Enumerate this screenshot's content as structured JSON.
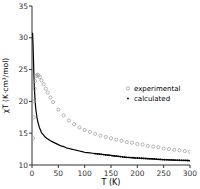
{
  "chart_data": {
    "type": "line",
    "xlabel": "T (K)",
    "ylabel": "χT (K·cm³/mol)",
    "xlim": [
      0,
      300
    ],
    "ylim": [
      10,
      35
    ],
    "xticks": [
      0,
      50,
      100,
      150,
      200,
      250,
      300
    ],
    "yticks": [
      10,
      15,
      20,
      25,
      30,
      35
    ],
    "grid": false,
    "legend": "center right",
    "series": [
      {
        "type": "line",
        "color": "black",
        "x": [
          1.0,
          1.5,
          2.0,
          2.5,
          3.0,
          3.5,
          4.0,
          4.5,
          5.0,
          5.5,
          6.0,
          6.5,
          7.0,
          7.5,
          8.0,
          9.0,
          10.0,
          11.0,
          12.0,
          13.0,
          14.0,
          15.0,
          17.0,
          18.0,
          20.0,
          22.0,
          25.0,
          28.0,
          30.0,
          35.0,
          40.0,
          45.0,
          50.0,
          55.0,
          60.0,
          65.0,
          70.0,
          75.0,
          80.0,
          85.0,
          90.0,
          95.0,
          100.0,
          105.0,
          110.0,
          115.0,
          120.0,
          125.0,
          130.0,
          135.0,
          140.0,
          145.0,
          150.0,
          155.0,
          160.0,
          165.0,
          170.0,
          175.0,
          180.0,
          185.0,
          190.0,
          195.0,
          200.0,
          210.0,
          220.0,
          230.0,
          240.0,
          250.0,
          260.0,
          270.0,
          280.0,
          290.0,
          300.0
        ],
        "values": [
          30.8,
          30.0,
          29.0,
          27.5,
          26.0,
          24.5,
          23.2,
          22.2,
          21.3,
          20.6,
          20.0,
          19.5,
          19.0,
          18.6,
          18.3,
          17.7,
          17.2,
          16.8,
          16.5,
          16.2,
          15.9,
          15.7,
          15.3,
          15.1,
          14.9,
          14.7,
          14.4,
          14.2,
          14.1,
          13.8,
          13.6,
          13.4,
          13.2,
          13.0,
          12.9,
          12.7,
          12.6,
          12.5,
          12.4,
          12.3,
          12.2,
          12.1,
          12.0,
          11.95,
          11.9,
          11.85,
          11.8,
          11.75,
          11.7,
          11.65,
          11.6,
          11.55,
          11.5,
          11.45,
          11.4,
          11.35,
          11.3,
          11.25,
          11.2,
          11.18,
          11.15,
          11.12,
          11.1,
          11.05,
          11.0,
          10.95,
          10.9,
          10.85,
          10.82,
          10.78,
          10.75,
          10.72,
          10.7
        ]
      },
      {
        "name": "experimental",
        "type": "scatter",
        "color": "#999999",
        "marker": "open-circle",
        "x": [
          2,
          3,
          4,
          5,
          6,
          8,
          10,
          12,
          15,
          18,
          22,
          26,
          30,
          35,
          40,
          50,
          60,
          70,
          80,
          90,
          100,
          110,
          120,
          130,
          140,
          150,
          160,
          170,
          180,
          190,
          200,
          210,
          220,
          230,
          240,
          250,
          260,
          270,
          280,
          290,
          300
        ],
        "values": [
          14.2,
          17.5,
          20.0,
          22.0,
          23.2,
          24.0,
          24.2,
          24.1,
          23.8,
          23.3,
          22.7,
          22.0,
          21.4,
          20.6,
          19.9,
          18.7,
          17.8,
          17.0,
          16.4,
          15.9,
          15.5,
          15.2,
          14.9,
          14.6,
          14.4,
          14.2,
          14.0,
          13.8,
          13.6,
          13.5,
          13.3,
          13.2,
          13.0,
          12.9,
          12.8,
          12.6,
          12.5,
          12.4,
          12.3,
          12.2,
          12.1
        ]
      },
      {
        "name": "calculated",
        "type": "scatter",
        "color": "black",
        "marker": "dot",
        "x": [
          120,
          124,
          128,
          132,
          136,
          140,
          144,
          148,
          152,
          156,
          160,
          164,
          168,
          172,
          176,
          180,
          184,
          188,
          192,
          196,
          200,
          204,
          208,
          212,
          216,
          220,
          224,
          228,
          232,
          236,
          240,
          244,
          248,
          252,
          256,
          260,
          264,
          268,
          272,
          276,
          280,
          284,
          288,
          292,
          296,
          300
        ],
        "values": [
          11.8,
          11.76,
          11.72,
          11.68,
          11.64,
          11.6,
          11.56,
          11.52,
          11.48,
          11.44,
          11.4,
          11.36,
          11.32,
          11.28,
          11.24,
          11.2,
          11.184,
          11.162,
          11.138,
          11.116,
          11.1,
          11.08,
          11.06,
          11.04,
          11.02,
          11.0,
          10.98,
          10.96,
          10.94,
          10.92,
          10.9,
          10.88,
          10.86,
          10.844,
          10.832,
          10.82,
          10.804,
          10.788,
          10.774,
          10.762,
          10.75,
          10.738,
          10.726,
          10.716,
          10.708,
          10.7
        ]
      }
    ]
  }
}
